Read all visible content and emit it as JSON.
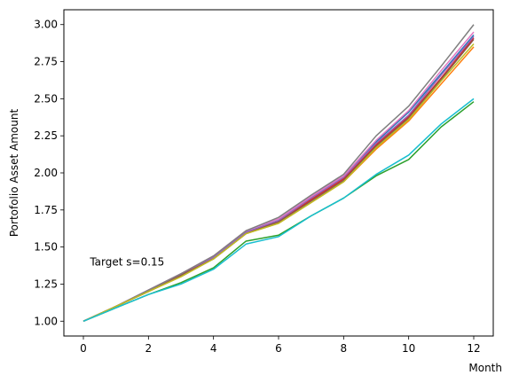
{
  "chart_data": {
    "type": "line",
    "title": "",
    "xlabel": "Month",
    "ylabel": "Portofolio Asset Amount",
    "xlim": [
      -0.6,
      12.6
    ],
    "ylim": [
      0.9,
      3.1
    ],
    "xticks": [
      0,
      2,
      4,
      6,
      8,
      10,
      12
    ],
    "xtick_labels": [
      "0",
      "2",
      "4",
      "6",
      "8",
      "10",
      "12"
    ],
    "yticks": [
      1.0,
      1.25,
      1.5,
      1.75,
      2.0,
      2.25,
      2.5,
      2.75,
      3.0
    ],
    "ytick_labels": [
      "1.00",
      "1.25",
      "1.50",
      "1.75",
      "2.00",
      "2.25",
      "2.50",
      "2.75",
      "3.00"
    ],
    "grid": false,
    "legend": "none",
    "annotation": {
      "text": "Target s=0.15",
      "x": 0.2,
      "y": 1.4
    },
    "x": [
      0,
      1,
      2,
      3,
      4,
      5,
      6,
      7,
      8,
      9,
      10,
      11,
      12
    ],
    "series": [
      {
        "color": "#1f77b4",
        "values": [
          1.0,
          1.1,
          1.2,
          1.31,
          1.43,
          1.6,
          1.68,
          1.83,
          1.97,
          2.21,
          2.41,
          2.67,
          2.93
        ]
      },
      {
        "color": "#ff7f0e",
        "values": [
          1.0,
          1.1,
          1.2,
          1.3,
          1.42,
          1.59,
          1.66,
          1.8,
          1.94,
          2.16,
          2.35,
          2.6,
          2.85
        ]
      },
      {
        "color": "#2ca02c",
        "values": [
          1.0,
          1.09,
          1.18,
          1.26,
          1.36,
          1.54,
          1.58,
          1.71,
          1.83,
          1.98,
          2.09,
          2.31,
          2.48
        ]
      },
      {
        "color": "#d62728",
        "values": [
          1.0,
          1.1,
          1.2,
          1.31,
          1.43,
          1.6,
          1.67,
          1.82,
          1.96,
          2.19,
          2.38,
          2.64,
          2.91
        ]
      },
      {
        "color": "#9467bd",
        "values": [
          1.0,
          1.1,
          1.21,
          1.32,
          1.43,
          1.6,
          1.68,
          1.83,
          1.97,
          2.2,
          2.39,
          2.66,
          2.92
        ]
      },
      {
        "color": "#8c564b",
        "values": [
          1.0,
          1.1,
          1.2,
          1.31,
          1.42,
          1.59,
          1.67,
          1.81,
          1.95,
          2.18,
          2.37,
          2.63,
          2.9
        ]
      },
      {
        "color": "#e377c2",
        "values": [
          1.0,
          1.1,
          1.21,
          1.32,
          1.44,
          1.61,
          1.69,
          1.84,
          1.98,
          2.22,
          2.42,
          2.69,
          2.95
        ]
      },
      {
        "color": "#7f7f7f",
        "values": [
          1.0,
          1.1,
          1.21,
          1.32,
          1.44,
          1.61,
          1.7,
          1.85,
          1.99,
          2.25,
          2.45,
          2.72,
          3.0
        ]
      },
      {
        "color": "#bcbd22",
        "values": [
          1.0,
          1.1,
          1.2,
          1.3,
          1.42,
          1.59,
          1.66,
          1.8,
          1.94,
          2.17,
          2.36,
          2.62,
          2.87
        ]
      },
      {
        "color": "#17becf",
        "values": [
          1.0,
          1.09,
          1.18,
          1.25,
          1.35,
          1.52,
          1.57,
          1.71,
          1.83,
          1.99,
          2.12,
          2.33,
          2.5
        ]
      }
    ]
  }
}
